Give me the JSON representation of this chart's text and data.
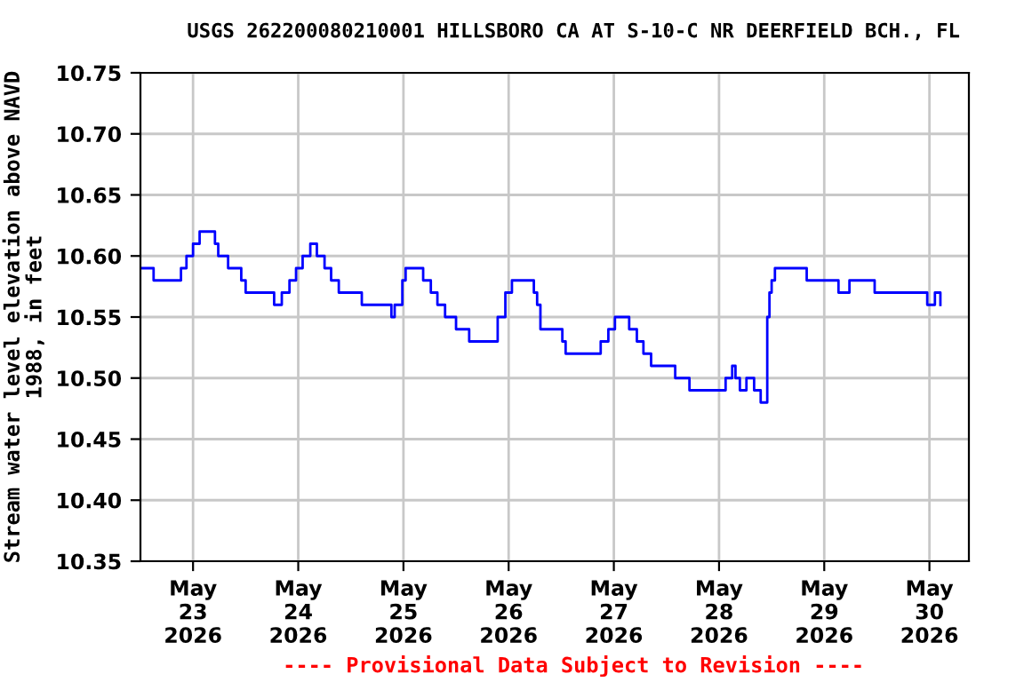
{
  "chart_data": {
    "type": "step",
    "title": "USGS 262200080210001 HILLSBORO CA AT S-10-C NR DEERFIELD BCH., FL",
    "ylabel": "Stream water level elevation above NAVD\n1988, in feet",
    "annotations": [
      "---- Provisional Data Subject to Revision ----"
    ],
    "x": [
      "2026-05-22T12:15",
      "2026-05-22T14:45",
      "2026-05-22T15:00",
      "2026-05-22T20:45",
      "2026-05-22T21:15",
      "2026-05-22T22:30",
      "2026-05-23T00:00",
      "2026-05-23T01:30",
      "2026-05-23T04:00",
      "2026-05-23T05:00",
      "2026-05-23T05:45",
      "2026-05-23T07:15",
      "2026-05-23T08:00",
      "2026-05-23T10:00",
      "2026-05-23T11:00",
      "2026-05-23T12:00",
      "2026-05-23T17:45",
      "2026-05-23T18:30",
      "2026-05-23T20:15",
      "2026-05-23T22:00",
      "2026-05-23T23:30",
      "2026-05-24T01:00",
      "2026-05-24T02:45",
      "2026-05-24T04:15",
      "2026-05-24T06:00",
      "2026-05-24T07:30",
      "2026-05-24T09:15",
      "2026-05-24T13:15",
      "2026-05-24T14:30",
      "2026-05-24T20:30",
      "2026-05-24T21:15",
      "2026-05-24T22:00",
      "2026-05-24T23:45",
      "2026-05-25T00:30",
      "2026-05-25T03:45",
      "2026-05-25T04:30",
      "2026-05-25T06:15",
      "2026-05-25T07:45",
      "2026-05-25T09:30",
      "2026-05-25T11:00",
      "2026-05-25T12:00",
      "2026-05-25T14:15",
      "2026-05-25T15:00",
      "2026-05-25T20:45",
      "2026-05-25T21:30",
      "2026-05-25T23:15",
      "2026-05-26T00:45",
      "2026-05-26T04:00",
      "2026-05-26T05:45",
      "2026-05-26T06:30",
      "2026-05-26T07:15",
      "2026-05-26T10:30",
      "2026-05-26T12:15",
      "2026-05-26T13:00",
      "2026-05-26T20:15",
      "2026-05-26T21:00",
      "2026-05-26T22:45",
      "2026-05-27T00:15",
      "2026-05-27T02:00",
      "2026-05-27T03:30",
      "2026-05-27T05:15",
      "2026-05-27T06:45",
      "2026-05-27T08:30",
      "2026-05-27T13:15",
      "2026-05-27T14:00",
      "2026-05-27T16:30",
      "2026-05-27T17:15",
      "2026-05-27T23:45",
      "2026-05-28T01:30",
      "2026-05-28T03:00",
      "2026-05-28T03:45",
      "2026-05-28T04:45",
      "2026-05-28T06:15",
      "2026-05-28T08:00",
      "2026-05-28T09:30",
      "2026-05-28T10:15",
      "2026-05-28T11:00",
      "2026-05-28T11:30",
      "2026-05-28T12:00",
      "2026-05-28T12:45",
      "2026-05-28T19:15",
      "2026-05-28T20:00",
      "2026-05-29T02:30",
      "2026-05-29T03:15",
      "2026-05-29T05:00",
      "2026-05-29T05:45",
      "2026-05-29T10:30",
      "2026-05-29T11:30",
      "2026-05-29T22:45",
      "2026-05-29T23:30",
      "2026-05-30T01:15",
      "2026-05-30T02:30"
    ],
    "series": [
      {
        "color": "#0000ff",
        "values": [
          10.59,
          10.59,
          10.58,
          10.58,
          10.59,
          10.6,
          10.61,
          10.62,
          10.62,
          10.61,
          10.6,
          10.6,
          10.59,
          10.59,
          10.58,
          10.57,
          10.57,
          10.56,
          10.57,
          10.58,
          10.59,
          10.6,
          10.61,
          10.6,
          10.59,
          10.58,
          10.57,
          10.57,
          10.56,
          10.56,
          10.55,
          10.56,
          10.58,
          10.59,
          10.59,
          10.58,
          10.57,
          10.56,
          10.55,
          10.55,
          10.54,
          10.54,
          10.53,
          10.53,
          10.55,
          10.57,
          10.58,
          10.58,
          10.57,
          10.56,
          10.54,
          10.54,
          10.53,
          10.52,
          10.52,
          10.53,
          10.54,
          10.55,
          10.55,
          10.54,
          10.53,
          10.52,
          10.51,
          10.51,
          10.5,
          10.5,
          10.49,
          10.49,
          10.5,
          10.51,
          10.5,
          10.49,
          10.5,
          10.49,
          10.48,
          10.48,
          10.55,
          10.57,
          10.58,
          10.59,
          10.59,
          10.58,
          10.58,
          10.57,
          10.57,
          10.58,
          10.58,
          10.57,
          10.57,
          10.56,
          10.57,
          10.56
        ]
      }
    ],
    "xlim": [
      "2026-05-22T12:00",
      "2026-05-30T09:00"
    ],
    "xticks": [
      {
        "value": "2026-05-23",
        "label": "May\n23\n2026"
      },
      {
        "value": "2026-05-24",
        "label": "May\n24\n2026"
      },
      {
        "value": "2026-05-25",
        "label": "May\n25\n2026"
      },
      {
        "value": "2026-05-26",
        "label": "May\n26\n2026"
      },
      {
        "value": "2026-05-27",
        "label": "May\n27\n2026"
      },
      {
        "value": "2026-05-28",
        "label": "May\n28\n2026"
      },
      {
        "value": "2026-05-29",
        "label": "May\n29\n2026"
      },
      {
        "value": "2026-05-30",
        "label": "May\n30\n2026"
      }
    ],
    "ylim": [
      10.35,
      10.75
    ],
    "yticks": [
      {
        "value": 10.35,
        "label": "10.35"
      },
      {
        "value": 10.4,
        "label": "10.40"
      },
      {
        "value": 10.45,
        "label": "10.45"
      },
      {
        "value": 10.5,
        "label": "10.50"
      },
      {
        "value": 10.55,
        "label": "10.55"
      },
      {
        "value": 10.6,
        "label": "10.60"
      },
      {
        "value": 10.65,
        "label": "10.65"
      },
      {
        "value": 10.7,
        "label": "10.70"
      },
      {
        "value": 10.75,
        "label": "10.75"
      }
    ],
    "grid": true,
    "legend": false
  }
}
